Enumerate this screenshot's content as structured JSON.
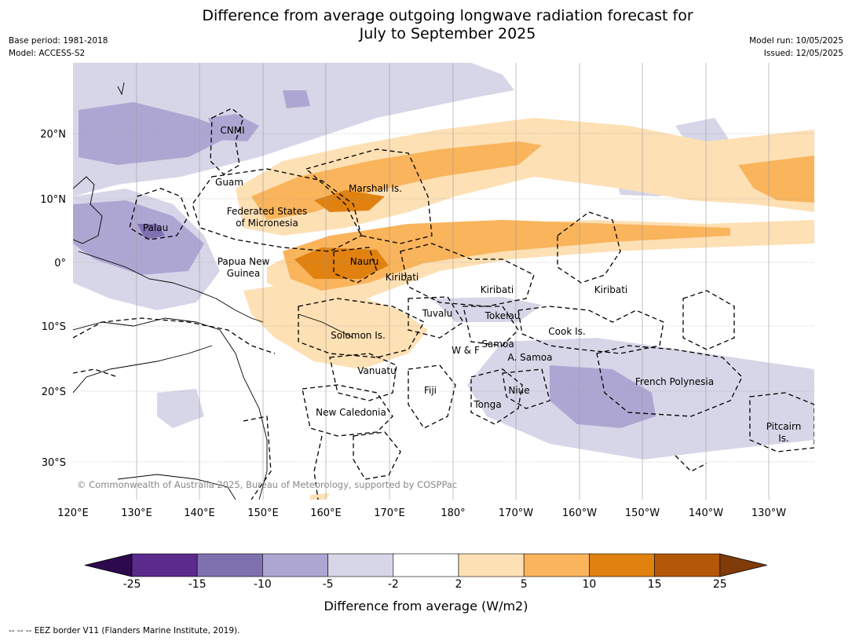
{
  "header": {
    "title_line1": "Difference from average outgoing longwave radiation forecast for",
    "title_line2": "July to September 2025",
    "base_period": "Base period: 1981-2018",
    "model": "Model: ACCESS-S2",
    "model_run": "Model run: 10/05/2025",
    "issued": "Issued: 12/05/2025"
  },
  "map": {
    "lon_labels": [
      "120°E",
      "130°E",
      "140°E",
      "150°E",
      "160°E",
      "170°E",
      "180°",
      "170°W",
      "160°W",
      "150°W",
      "140°W",
      "130°W"
    ],
    "lat_labels": [
      "20°N",
      "10°N",
      "0°",
      "10°S",
      "20°S",
      "30°S"
    ],
    "copyright": "© Commonwealth of Australia 2025, Bureau of Meteorology, supported by COSPPac",
    "places": [
      "CNMI",
      "Guam",
      "Marshall Is.",
      "Federated States",
      "of Micronesia",
      "Palau",
      "Papua New",
      "Guinea",
      "Nauru",
      "Kiribati",
      "Kiribati",
      "Kiribati",
      "Tuvalu",
      "Tokelau",
      "Cook Is.",
      "Solomon Is.",
      "Samoa",
      "W & F",
      "A. Samoa",
      "Vanuatu",
      "Fiji",
      "Niue",
      "French Polynesia",
      "Tonga",
      "New Caledonia",
      "Pitcairn",
      "Is."
    ]
  },
  "colorbar": {
    "ticks": [
      "-25",
      "-15",
      "-10",
      "-5",
      "-2",
      "2",
      "5",
      "10",
      "15",
      "25"
    ],
    "colors": [
      "#2d0a4e",
      "#5b2a8c",
      "#7f70b0",
      "#aea6d2",
      "#d6d6e8",
      "#ffffff",
      "#fde0b4",
      "#f9b45c",
      "#e08110",
      "#b35806",
      "#7f3b08"
    ],
    "label": "Difference from average (W/m2)"
  },
  "footer": {
    "legend": "--  --  -- EEZ border V11 (Flanders Marine Institute, 2019)."
  }
}
